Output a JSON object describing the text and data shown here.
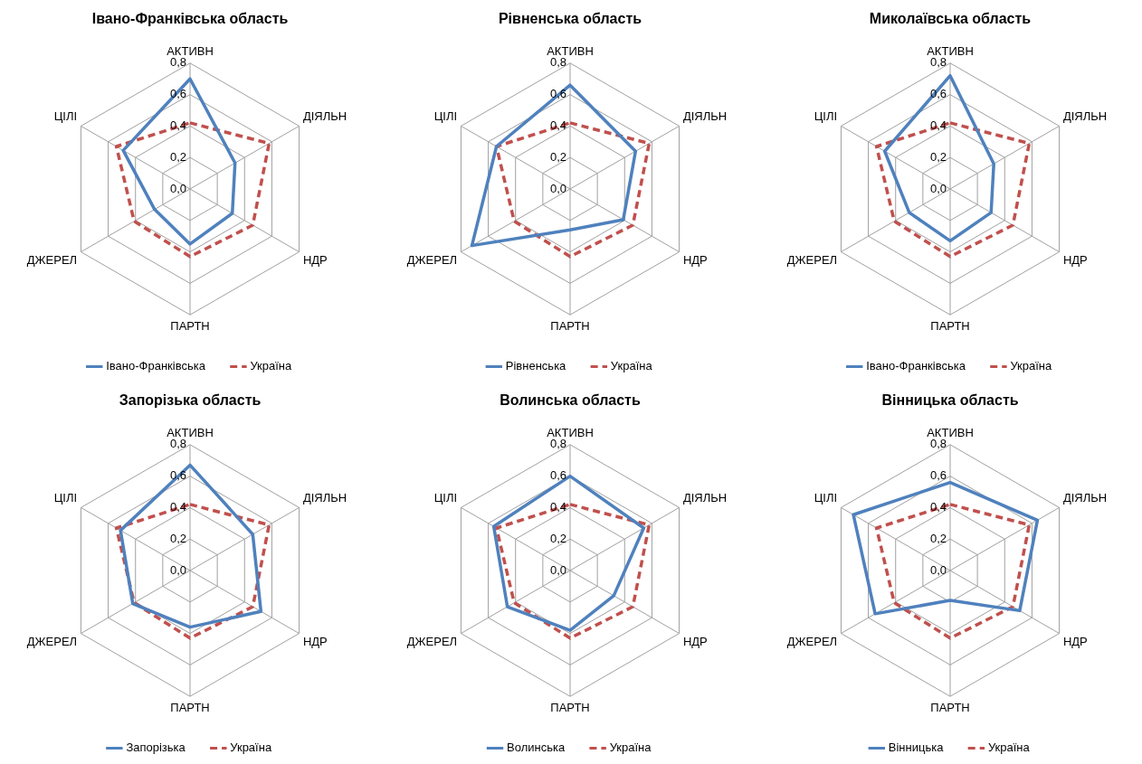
{
  "chart_data": [
    {
      "type": "radar",
      "title": "Івано-Франківська область",
      "categories": [
        "АКТИВН",
        "ДІЯЛЬН",
        "НДР",
        "ПАРТН",
        "ДЖЕРЕЛ",
        "ЦІЛІ"
      ],
      "ylim": [
        0,
        0.8
      ],
      "yticks": [
        {
          "value": 0,
          "label": "0,0"
        },
        {
          "value": 0.2,
          "label": "0,2"
        },
        {
          "value": 0.4,
          "label": "0,4"
        },
        {
          "value": 0.6,
          "label": "0,6"
        },
        {
          "value": 0.8,
          "label": "0,8"
        }
      ],
      "grid": true,
      "legend": "bottom",
      "marker": "none",
      "series": [
        {
          "name": "Івано-Франківська",
          "color": "#4f81bd",
          "line_style": "solid",
          "values": [
            0.7,
            0.33,
            0.31,
            0.35,
            0.26,
            0.49
          ]
        },
        {
          "name": "Україна",
          "color": "#c0504d",
          "line_style": "dashed",
          "values": [
            0.42,
            0.58,
            0.46,
            0.43,
            0.41,
            0.54
          ]
        }
      ]
    },
    {
      "type": "radar",
      "title": "Рівненська область",
      "categories": [
        "АКТИВН",
        "ДІЯЛЬН",
        "НДР",
        "ПАРТН",
        "ДЖЕРЕЛ",
        "ЦІЛІ"
      ],
      "ylim": [
        0,
        0.8
      ],
      "yticks": [
        {
          "value": 0,
          "label": "0,0"
        },
        {
          "value": 0.2,
          "label": "0,2"
        },
        {
          "value": 0.4,
          "label": "0,4"
        },
        {
          "value": 0.6,
          "label": "0,6"
        },
        {
          "value": 0.8,
          "label": "0,8"
        }
      ],
      "grid": true,
      "legend": "bottom",
      "marker": "none",
      "series": [
        {
          "name": "Рівненська",
          "color": "#4f81bd",
          "line_style": "solid",
          "values": [
            0.66,
            0.48,
            0.39,
            0.26,
            0.72,
            0.54
          ]
        },
        {
          "name": "Україна",
          "color": "#c0504d",
          "line_style": "dashed",
          "values": [
            0.42,
            0.58,
            0.46,
            0.43,
            0.41,
            0.54
          ]
        }
      ]
    },
    {
      "type": "radar",
      "title": "Миколаївська область",
      "categories": [
        "АКТИВН",
        "ДІЯЛЬН",
        "НДР",
        "ПАРТН",
        "ДЖЕРЕЛ",
        "ЦІЛІ"
      ],
      "ylim": [
        0,
        0.8
      ],
      "yticks": [
        {
          "value": 0,
          "label": "0,0"
        },
        {
          "value": 0.2,
          "label": "0,2"
        },
        {
          "value": 0.4,
          "label": "0,4"
        },
        {
          "value": 0.6,
          "label": "0,6"
        },
        {
          "value": 0.8,
          "label": "0,8"
        }
      ],
      "grid": true,
      "legend": "bottom",
      "marker": "none",
      "series": [
        {
          "name": "Івано-Франківська",
          "color": "#4f81bd",
          "line_style": "solid",
          "values": [
            0.72,
            0.32,
            0.3,
            0.33,
            0.3,
            0.48
          ]
        },
        {
          "name": "Україна",
          "color": "#c0504d",
          "line_style": "dashed",
          "values": [
            0.42,
            0.58,
            0.46,
            0.43,
            0.41,
            0.54
          ]
        }
      ]
    },
    {
      "type": "radar",
      "title": "Запорізька область",
      "categories": [
        "АКТИВН",
        "ДІЯЛЬН",
        "НДР",
        "ПАРТН",
        "ДЖЕРЕЛ",
        "ЦІЛІ"
      ],
      "ylim": [
        0,
        0.8
      ],
      "yticks": [
        {
          "value": 0,
          "label": "0,0"
        },
        {
          "value": 0.2,
          "label": "0,2"
        },
        {
          "value": 0.4,
          "label": "0,4"
        },
        {
          "value": 0.6,
          "label": "0,6"
        },
        {
          "value": 0.8,
          "label": "0,8"
        }
      ],
      "grid": true,
      "legend": "bottom",
      "marker": "none",
      "series": [
        {
          "name": "Запорізька",
          "color": "#4f81bd",
          "line_style": "solid",
          "values": [
            0.67,
            0.46,
            0.52,
            0.36,
            0.42,
            0.51
          ]
        },
        {
          "name": "Україна",
          "color": "#c0504d",
          "line_style": "dashed",
          "values": [
            0.42,
            0.58,
            0.46,
            0.43,
            0.41,
            0.54
          ]
        }
      ]
    },
    {
      "type": "radar",
      "title": "Волинська область",
      "categories": [
        "АКТИВН",
        "ДІЯЛЬН",
        "НДР",
        "ПАРТН",
        "ДЖЕРЕЛ",
        "ЦІЛІ"
      ],
      "ylim": [
        0,
        0.8
      ],
      "yticks": [
        {
          "value": 0,
          "label": "0,0"
        },
        {
          "value": 0.2,
          "label": "0,2"
        },
        {
          "value": 0.4,
          "label": "0,4"
        },
        {
          "value": 0.6,
          "label": "0,6"
        },
        {
          "value": 0.8,
          "label": "0,8"
        }
      ],
      "grid": true,
      "legend": "bottom",
      "marker": "none",
      "series": [
        {
          "name": "Волинська",
          "color": "#4f81bd",
          "line_style": "solid",
          "values": [
            0.6,
            0.54,
            0.32,
            0.38,
            0.46,
            0.56
          ]
        },
        {
          "name": "Україна",
          "color": "#c0504d",
          "line_style": "dashed",
          "values": [
            0.42,
            0.58,
            0.46,
            0.43,
            0.41,
            0.54
          ]
        }
      ]
    },
    {
      "type": "radar",
      "title": "Вінницька область",
      "categories": [
        "АКТИВН",
        "ДІЯЛЬН",
        "НДР",
        "ПАРТН",
        "ДЖЕРЕЛ",
        "ЦІЛІ"
      ],
      "ylim": [
        0,
        0.8
      ],
      "yticks": [
        {
          "value": 0,
          "label": "0,0"
        },
        {
          "value": 0.2,
          "label": "0,2"
        },
        {
          "value": 0.4,
          "label": "0,4"
        },
        {
          "value": 0.6,
          "label": "0,6"
        },
        {
          "value": 0.8,
          "label": "0,8"
        }
      ],
      "grid": true,
      "legend": "bottom",
      "marker": "none",
      "series": [
        {
          "name": "Вінницька",
          "color": "#4f81bd",
          "line_style": "solid",
          "values": [
            0.56,
            0.64,
            0.51,
            0.19,
            0.55,
            0.71
          ]
        },
        {
          "name": "Україна",
          "color": "#c0504d",
          "line_style": "dashed",
          "values": [
            0.42,
            0.58,
            0.46,
            0.43,
            0.41,
            0.54
          ]
        }
      ]
    }
  ]
}
